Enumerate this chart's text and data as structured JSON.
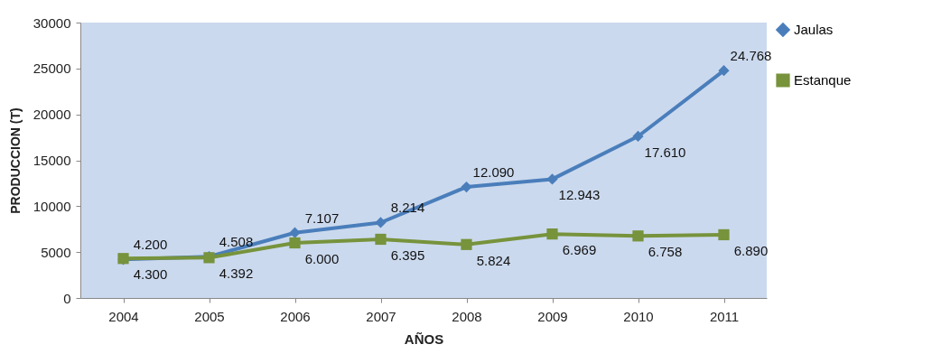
{
  "chart_data": {
    "type": "line",
    "xlabel": "AÑOS",
    "ylabel": "PRODUCCION (T)",
    "categories": [
      "2004",
      "2005",
      "2006",
      "2007",
      "2008",
      "2009",
      "2010",
      "2011"
    ],
    "series": [
      {
        "name": "Jaulas",
        "color": "#4a7ebb",
        "marker": "diamond",
        "values": [
          4200,
          4508,
          7107,
          8214,
          12090,
          12943,
          17610,
          24768
        ],
        "value_labels": [
          "4.200",
          "4.508",
          "7.107",
          "8.214",
          "12.090",
          "12.943",
          "17.610",
          "24.768"
        ]
      },
      {
        "name": "Estanque",
        "color": "#77933c",
        "marker": "square",
        "values": [
          4300,
          4392,
          6000,
          6395,
          5824,
          6969,
          6758,
          6890
        ],
        "value_labels": [
          "4.300",
          "4.392",
          "6.000",
          "6.395",
          "5.824",
          "6.969",
          "6.758",
          "6.890"
        ]
      }
    ],
    "ylim": [
      0,
      30000
    ],
    "yticks": [
      0,
      5000,
      10000,
      15000,
      20000,
      25000,
      30000
    ],
    "grid": false,
    "legend": "right",
    "line_style": "solid"
  }
}
